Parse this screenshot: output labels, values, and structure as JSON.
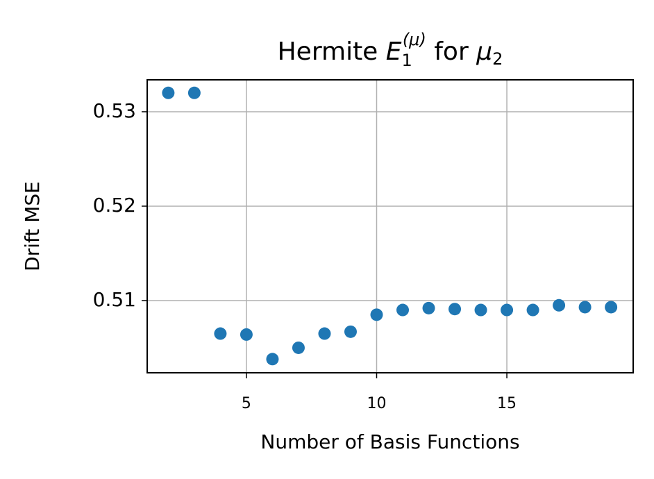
{
  "chart_data": {
    "type": "scatter",
    "title": [
      "Hermite ",
      "E",
      "1",
      "(μ)",
      " for ",
      "μ",
      "2"
    ],
    "x_label": "Number of Basis Functions",
    "y_label": "Drift MSE",
    "x": [
      2,
      3,
      4,
      5,
      6,
      7,
      8,
      9,
      10,
      11,
      12,
      13,
      14,
      15,
      16,
      17,
      18,
      19
    ],
    "series": [
      {
        "color": "#1f77b4",
        "values": [
          0.532,
          0.532,
          0.5065,
          0.5064,
          0.5038,
          0.505,
          0.5065,
          0.5067,
          0.5085,
          0.509,
          0.5092,
          0.5091,
          0.509,
          0.509,
          0.509,
          0.5095,
          0.5093,
          0.5093
        ]
      }
    ],
    "xlim": [
      1.19,
      19.85
    ],
    "xticks": [
      5,
      10,
      15
    ],
    "ylim": [
      0.50235,
      0.53338
    ],
    "yticks": [
      0.51,
      0.52,
      0.53
    ],
    "grid": true
  }
}
